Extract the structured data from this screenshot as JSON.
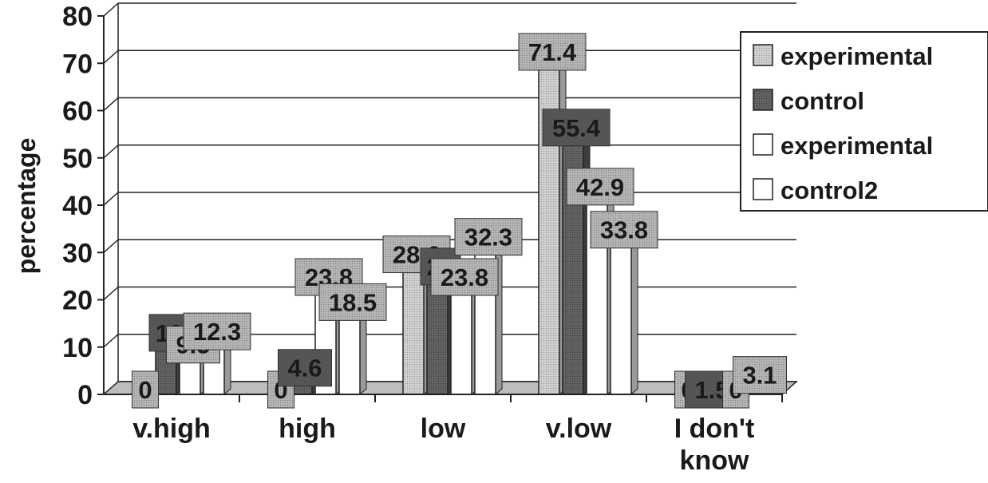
{
  "chart_data": {
    "type": "bar",
    "categories": [
      "v.high",
      "high",
      "low",
      "v.low",
      "I don't know"
    ],
    "series": [
      {
        "name": "experimental",
        "values": [
          0,
          0,
          28.6,
          71.4,
          0
        ]
      },
      {
        "name": "control",
        "values": [
          12,
          4.6,
          26,
          55.4,
          1.5
        ]
      },
      {
        "name": "experimental",
        "values": [
          9.5,
          23.8,
          23.8,
          42.9,
          0
        ]
      },
      {
        "name": "control2",
        "values": [
          12.3,
          18.5,
          32.3,
          33.8,
          3.1
        ]
      }
    ],
    "data_labels": [
      [
        "0",
        "12",
        "9.5",
        "12.3"
      ],
      [
        "0",
        "4.6",
        "23.8",
        "18.5"
      ],
      [
        "28.6",
        "26",
        "23.8",
        "32.3"
      ],
      [
        "71.4",
        "55.4",
        "42.9",
        "33.8"
      ],
      [
        "0",
        "1.5",
        "0",
        "3.1"
      ]
    ],
    "ylabel": "percentage",
    "xlabel": "",
    "title": "",
    "ylim": [
      0,
      80
    ],
    "yticks": [
      "0",
      "10",
      "20",
      "30",
      "40",
      "50",
      "60",
      "70",
      "80"
    ],
    "grid": true,
    "legend_position": "right",
    "colors": {
      "series_fills": [
        "#c8c8c8",
        "#5e5e5e",
        "#ffffff",
        "#ffffff"
      ],
      "label_box": "#a9a9a9",
      "label_box_dark": "#555555",
      "axis": "#222222"
    }
  }
}
